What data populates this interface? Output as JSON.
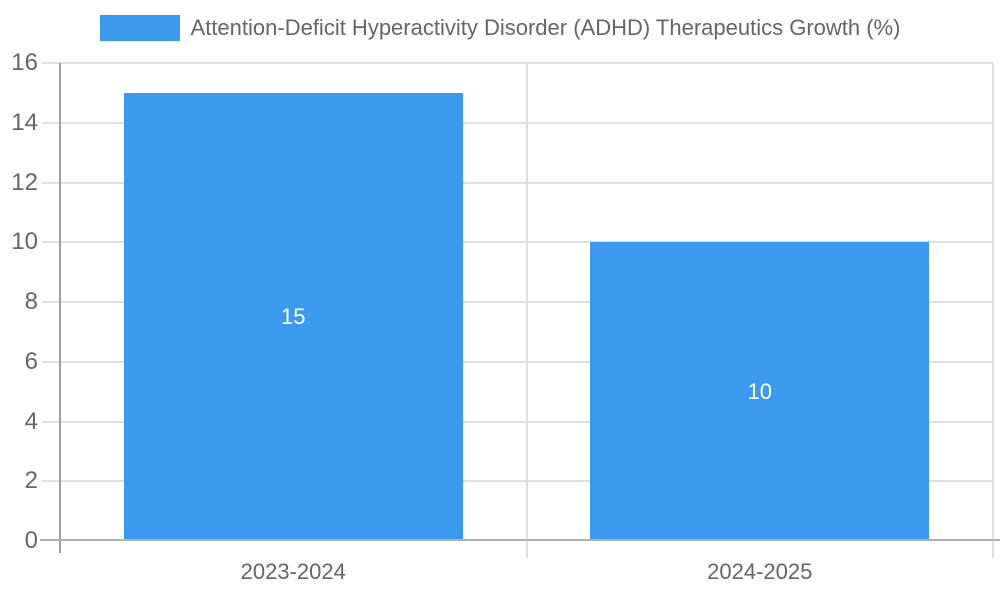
{
  "colors": {
    "bar": "#3b99ee",
    "text": "#666666",
    "grid": "#e0e0e0",
    "axis_x": "#b0b0b0",
    "axis_y": "#9e9e9e",
    "value_label": "#ffffff"
  },
  "legend": {
    "label": "Attention-Deficit Hyperactivity Disorder (ADHD) Therapeutics Growth (%)"
  },
  "chart_data": {
    "type": "bar",
    "title": "Attention-Deficit Hyperactivity Disorder (ADHD) Therapeutics Growth (%)",
    "categories": [
      "2023-2024",
      "2024-2025"
    ],
    "values": [
      15,
      10
    ],
    "series": [
      {
        "name": "Attention-Deficit Hyperactivity Disorder (ADHD) Therapeutics Growth (%)",
        "values": [
          15,
          10
        ]
      }
    ],
    "value_labels": [
      "15",
      "10"
    ],
    "xlabel": "",
    "ylabel": "",
    "ylim": [
      0,
      16
    ],
    "yticks": [
      0,
      2,
      4,
      6,
      8,
      10,
      12,
      14,
      16
    ],
    "grid": true,
    "legend_position": "top"
  }
}
